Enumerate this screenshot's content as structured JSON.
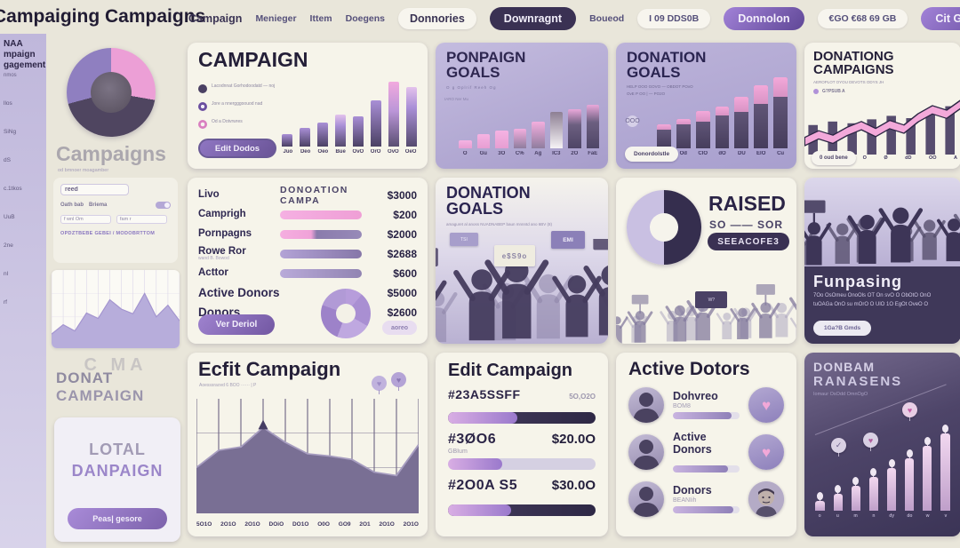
{
  "topnav": {
    "title": "Campaiging Campaigns",
    "items": [
      {
        "label": "Campaign",
        "style": "plain"
      },
      {
        "label": "Menieger",
        "style": "plain sm"
      },
      {
        "label": "Ittem",
        "style": "plain sm"
      },
      {
        "label": "Doegens",
        "style": "plain sm"
      },
      {
        "label": "Donnories",
        "style": "pill-light"
      },
      {
        "label": "Downragnt",
        "style": "pill-dark"
      },
      {
        "label": "Boueod",
        "style": "plain sm"
      },
      {
        "label": "I 09 DDS0B",
        "style": "pill-light sm"
      },
      {
        "label": "Donnolon",
        "style": "pill-purple"
      },
      {
        "label": "€GO €68   69 GB",
        "style": "pill-light sm"
      },
      {
        "label": "Cit Gererzist",
        "style": "pill-purple"
      }
    ]
  },
  "sidebar": {
    "title": "NAA mpaign gagement",
    "subtitle": "nmos",
    "items": [
      "llos",
      "SiNg",
      "dS",
      "c.1tkos",
      "UuB",
      "2ne",
      "nl",
      "rf"
    ]
  },
  "panel": {
    "heading": "Campaigns",
    "sub": "od bmnoer moagamber",
    "form": {
      "field1": "reed",
      "row1a": "Oath bab",
      "row1b": "Briema",
      "field2a": "f wnl Om",
      "field2b": "fam r",
      "footer": "OPDZTBEBE GEBEI / MODOBRTTOM"
    },
    "faded": "C MA",
    "heading2a": "DONAT",
    "heading2b": "CAMPAIGN",
    "card": {
      "line1": "LOTAL",
      "line2": "DANPAIGN",
      "button": "Peas| gesore"
    }
  },
  "cards": {
    "campaign": {
      "title": "CAMPAIGN",
      "legend": [
        {
          "t1": "Lacodnnat",
          "t2": "Gorhodoodatd — noj"
        },
        {
          "t1": "Jore a nnergggoouod nad",
          "t2": ""
        },
        {
          "t1": "Od a Dotvrwres",
          "t2": ""
        }
      ],
      "button": "Edit Dodos"
    },
    "ponpaign": {
      "title1": "PONPAIGN",
      "title2": "GOALS",
      "sub": "O g   Oplrif   Reeh   Og",
      "axis": "IARO Ner Mu"
    },
    "donation_goals_top": {
      "title1": "DONATION",
      "title2": "GOALS",
      "sub1": "HELP OOO GOVO — OBDOT POvO",
      "sub2": "OvE P OO | — PO2O",
      "axis_label": "OOO",
      "button": "Donordolstle"
    },
    "donationg": {
      "title1": "DONATIONG",
      "title2": "CAMPAIGNS",
      "sub": "AEROPLOT OYOU DEVOTS ODYS JH",
      "legend": "G?PSUB A",
      "button": "0 oud bene"
    },
    "stats": {
      "col_label": "Livo",
      "header": "DONOATION CAMPA",
      "header_value": "$3000",
      "rows": [
        {
          "label": "Camprigh",
          "value": "$200",
          "bar": "pink",
          "sub": ""
        },
        {
          "label": "Pornpagns",
          "value": "$2000",
          "bar": "mix",
          "sub": ""
        },
        {
          "label": "Rowe Ror",
          "value": "$2688",
          "bar": "purple",
          "sub": "wand B. Bowod"
        },
        {
          "label": "Acttor",
          "value": "$600",
          "bar": "purple2",
          "sub": ""
        },
        {
          "label": "Active Donors",
          "value": "$5000",
          "bar": "none",
          "sub": ""
        },
        {
          "label": "Donors",
          "value": "$2600",
          "bar": "none",
          "sub": ""
        }
      ],
      "button": "Ver Deriol",
      "pill": "aoreo"
    },
    "donation_goals_mid": {
      "title1": "DONATION",
      "title2": "GOALS",
      "sub": "amaguret al anoss NUADNABEP baun mnnntd ano 6BV (8)",
      "signs": [
        "TSI",
        "e$S9o",
        "EMI"
      ]
    },
    "raised": {
      "title": "RAISED",
      "sub": "SO —— SOR",
      "badge": "SEEACOFE3",
      "sign": "W?"
    },
    "fundaising": {
      "title": "Funpasing",
      "line1": "7Oo OsOmeu OnoOls OT On svO O ObOtO OnO",
      "line2": "tuOAGa OnO su mOrO O UlO 1O EgOt OveO O",
      "button": "1Ga?B Gmds"
    },
    "edit_area": {
      "title": "Ecfit Campaign",
      "sub": "Aoesssraovd 6 BOO ······ | P"
    },
    "edit_bars": {
      "title": "Edit Campaign",
      "rows": [
        {
          "code": "#23A5SSFF",
          "value": "5O,O2O",
          "sub": "",
          "fill": 47,
          "track": "dark",
          "vstyle": "sm"
        },
        {
          "code": "#3ØO6",
          "value": "$20.0O",
          "sub": "GBIum",
          "fill": 37,
          "track": "light",
          "vstyle": "lg"
        },
        {
          "code": "#2O0A S5",
          "value": "$30.0O",
          "sub": "",
          "fill": 43,
          "track": "dark",
          "vstyle": "lg"
        }
      ]
    },
    "donors": {
      "title": "Active Dotors",
      "rows": [
        {
          "name": "Dohvreo",
          "sub": "BOM8",
          "icon": "heart",
          "progress": 88
        },
        {
          "name": "Active Donors",
          "sub": "",
          "icon": "heart",
          "progress": 82
        },
        {
          "name": "Donors",
          "sub": "BEANIih",
          "icon": "avatar",
          "progress": 90
        }
      ]
    },
    "dondam": {
      "title1": "DONBAM",
      "title2": "RANASENS",
      "sub": "Iomaur OsOdd OmnOgO",
      "icons": [
        "✓",
        "♥",
        "♥"
      ]
    }
  },
  "chart_data": [
    {
      "id": "campaign-bars",
      "type": "bar",
      "title": "Campaign donations by month",
      "categories": [
        "Juo",
        "Deo",
        "Oeo",
        "Bue",
        "OvO",
        "OrO",
        "OvO",
        "OeO"
      ],
      "values": [
        18,
        26,
        34,
        46,
        43,
        66,
        92,
        85
      ],
      "ylim": [
        0,
        100
      ],
      "bar_styles": [
        "p",
        "p",
        "p",
        "lp",
        "p",
        "p",
        "pk",
        "lp"
      ]
    },
    {
      "id": "ponpaign-bars",
      "type": "bar",
      "title": "Ponpaign goals",
      "categories": [
        "O",
        "Gu",
        "3O",
        "C%",
        "Ag",
        "IC3",
        "2O",
        "FaE"
      ],
      "values": [
        14,
        26,
        32,
        36,
        50,
        68,
        72,
        80
      ],
      "ylim": [
        0,
        100
      ],
      "bar_styles": [
        "a",
        "a",
        "a",
        "c",
        "c",
        "d",
        "e",
        "e"
      ]
    },
    {
      "id": "donation-bars",
      "type": "bar",
      "title": "Donation goals",
      "categories": [
        "",
        "Od",
        "ClO",
        "dO",
        "DU",
        "ElO",
        "Cu"
      ],
      "values": [
        30,
        36,
        46,
        52,
        64,
        78,
        88
      ],
      "ylim": [
        0,
        100
      ],
      "caps": [
        0.22,
        0.18,
        0.28,
        0.22,
        0.3,
        0.3,
        0.28
      ]
    },
    {
      "id": "donationg-line",
      "type": "line-bar",
      "title": "Donationg campaigns trend",
      "bar_values": [
        52,
        58,
        55,
        62,
        68,
        64,
        75,
        85
      ],
      "line_values": [
        30,
        42,
        34,
        48,
        58,
        46,
        60,
        52,
        72,
        86,
        78,
        96
      ],
      "categories": [
        "O",
        "Ø",
        "dD",
        "OO",
        "A"
      ],
      "ylim": [
        0,
        100
      ]
    },
    {
      "id": "edit-area",
      "type": "area",
      "title": "Edit campaign performance",
      "values": [
        40,
        55,
        58,
        75,
        62,
        52,
        50,
        47,
        36,
        33,
        60
      ],
      "categories": [
        "5O1O",
        "2O1O",
        "2O1O",
        "DOiO",
        "DO1O",
        "O0O",
        "GO9",
        "2O1",
        "2O1O",
        "2O1O"
      ],
      "ylim": [
        0,
        100
      ],
      "peak_index": 3
    },
    {
      "id": "dondam-bars",
      "type": "bar",
      "title": "Donation raisers growth",
      "values": [
        10,
        17,
        25,
        33,
        42,
        52,
        64,
        76
      ],
      "ylim": [
        0,
        100
      ],
      "balloons": true,
      "categories": [
        "o",
        "u",
        "m",
        "n",
        "dy",
        "do",
        "w",
        "v"
      ]
    },
    {
      "id": "panel-area",
      "type": "area",
      "title": "Panel mini trend",
      "values": [
        18,
        30,
        22,
        45,
        38,
        62,
        50,
        44,
        70,
        40,
        55,
        35
      ],
      "ylim": [
        0,
        100
      ]
    }
  ]
}
